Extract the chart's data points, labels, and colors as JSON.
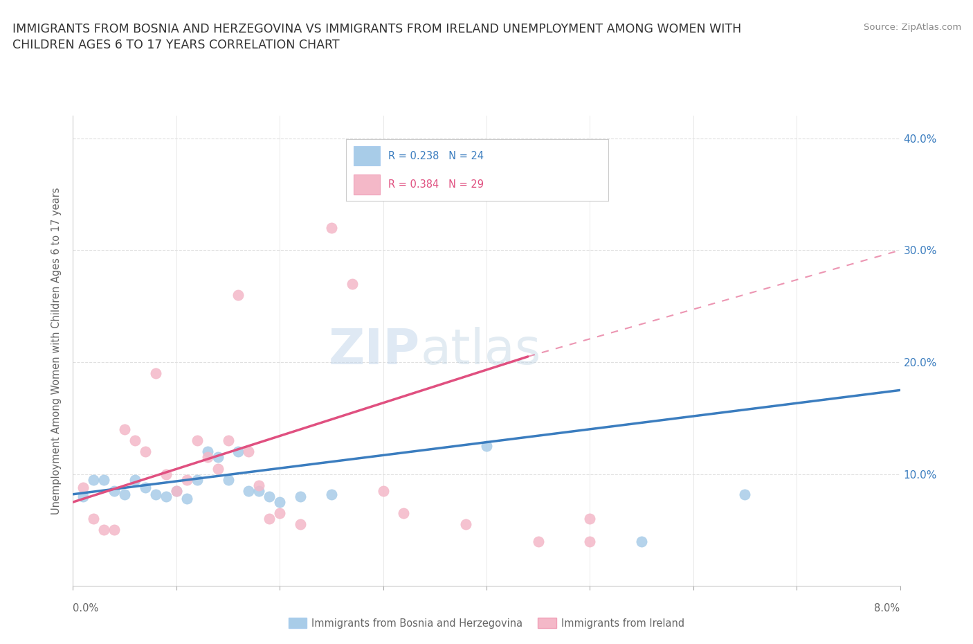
{
  "title": "IMMIGRANTS FROM BOSNIA AND HERZEGOVINA VS IMMIGRANTS FROM IRELAND UNEMPLOYMENT AMONG WOMEN WITH\nCHILDREN AGES 6 TO 17 YEARS CORRELATION CHART",
  "ylabel": "Unemployment Among Women with Children Ages 6 to 17 years",
  "source": "Source: ZipAtlas.com",
  "bosnia_color": "#a8cce8",
  "ireland_color": "#f4b8c8",
  "bosnia_line_color": "#3b7dbf",
  "ireland_line_color": "#e05080",
  "watermark_zip": "ZIP",
  "watermark_atlas": "atlas",
  "xlim": [
    0.0,
    0.08
  ],
  "ylim": [
    0.0,
    0.42
  ],
  "yticks": [
    0.0,
    0.1,
    0.2,
    0.3,
    0.4
  ],
  "right_ytick_labels": [
    "",
    "10.0%",
    "20.0%",
    "30.0%",
    "40.0%"
  ],
  "bosnia_scatter_x": [
    0.001,
    0.002,
    0.003,
    0.004,
    0.005,
    0.006,
    0.007,
    0.008,
    0.009,
    0.01,
    0.011,
    0.012,
    0.013,
    0.014,
    0.015,
    0.016,
    0.017,
    0.018,
    0.019,
    0.02,
    0.022,
    0.025,
    0.04,
    0.055,
    0.065
  ],
  "bosnia_scatter_y": [
    0.08,
    0.095,
    0.095,
    0.085,
    0.082,
    0.095,
    0.088,
    0.082,
    0.08,
    0.085,
    0.078,
    0.095,
    0.12,
    0.115,
    0.095,
    0.12,
    0.085,
    0.085,
    0.08,
    0.075,
    0.08,
    0.082,
    0.125,
    0.04,
    0.082
  ],
  "ireland_scatter_x": [
    0.001,
    0.002,
    0.003,
    0.004,
    0.005,
    0.006,
    0.007,
    0.008,
    0.009,
    0.01,
    0.011,
    0.012,
    0.013,
    0.014,
    0.015,
    0.016,
    0.017,
    0.018,
    0.019,
    0.02,
    0.022,
    0.025,
    0.027,
    0.03,
    0.032,
    0.038,
    0.045,
    0.05,
    0.05
  ],
  "ireland_scatter_y": [
    0.088,
    0.06,
    0.05,
    0.05,
    0.14,
    0.13,
    0.12,
    0.19,
    0.1,
    0.085,
    0.095,
    0.13,
    0.115,
    0.105,
    0.13,
    0.26,
    0.12,
    0.09,
    0.06,
    0.065,
    0.055,
    0.32,
    0.27,
    0.085,
    0.065,
    0.055,
    0.04,
    0.06,
    0.04
  ],
  "bosnia_trend_x0": 0.0,
  "bosnia_trend_x1": 0.08,
  "bosnia_trend_y0": 0.082,
  "bosnia_trend_y1": 0.175,
  "ireland_trend_x0": 0.0,
  "ireland_trend_x1": 0.044,
  "ireland_trend_solid_x1": 0.044,
  "ireland_trend_dashed_x1": 0.08,
  "ireland_trend_y0": 0.075,
  "ireland_trend_y1_solid": 0.205,
  "ireland_trend_y1_dashed": 0.3,
  "grid_color": "#e0e0e0",
  "bg_color": "#ffffff",
  "title_color": "#333333",
  "axis_label_color": "#666666",
  "right_axis_color": "#3b7dbf"
}
